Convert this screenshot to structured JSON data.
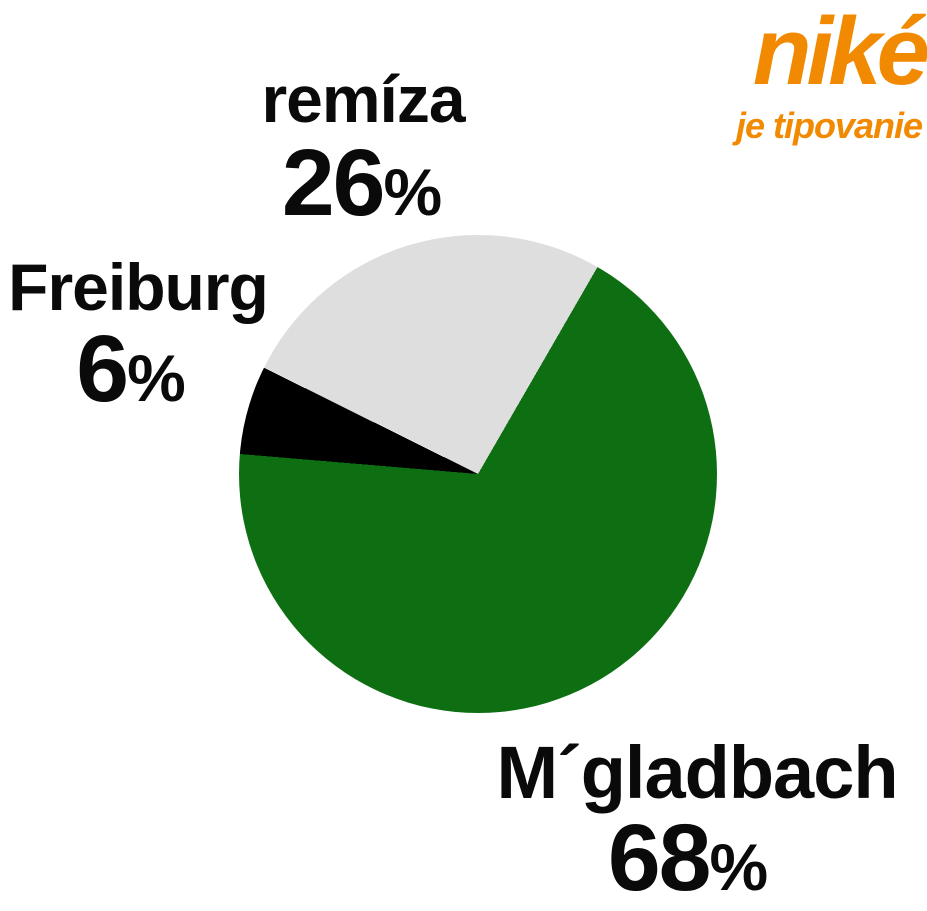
{
  "logo": {
    "brand": "niké",
    "tagline": "je tipovanie",
    "color": "#F18A00"
  },
  "chart_data": {
    "type": "pie",
    "title": "",
    "unit": "%",
    "background": "#FFFFFF",
    "start_angle_deg": 30,
    "direction": "clockwise",
    "legend_position": "labels-outside",
    "slices": [
      {
        "label": "M´gladbach",
        "value": 68,
        "color": "#0E6E12"
      },
      {
        "label": "Freiburg",
        "value": 6,
        "color": "#000000"
      },
      {
        "label": "remíza",
        "value": 26,
        "color": "#DEDEDE"
      }
    ]
  }
}
